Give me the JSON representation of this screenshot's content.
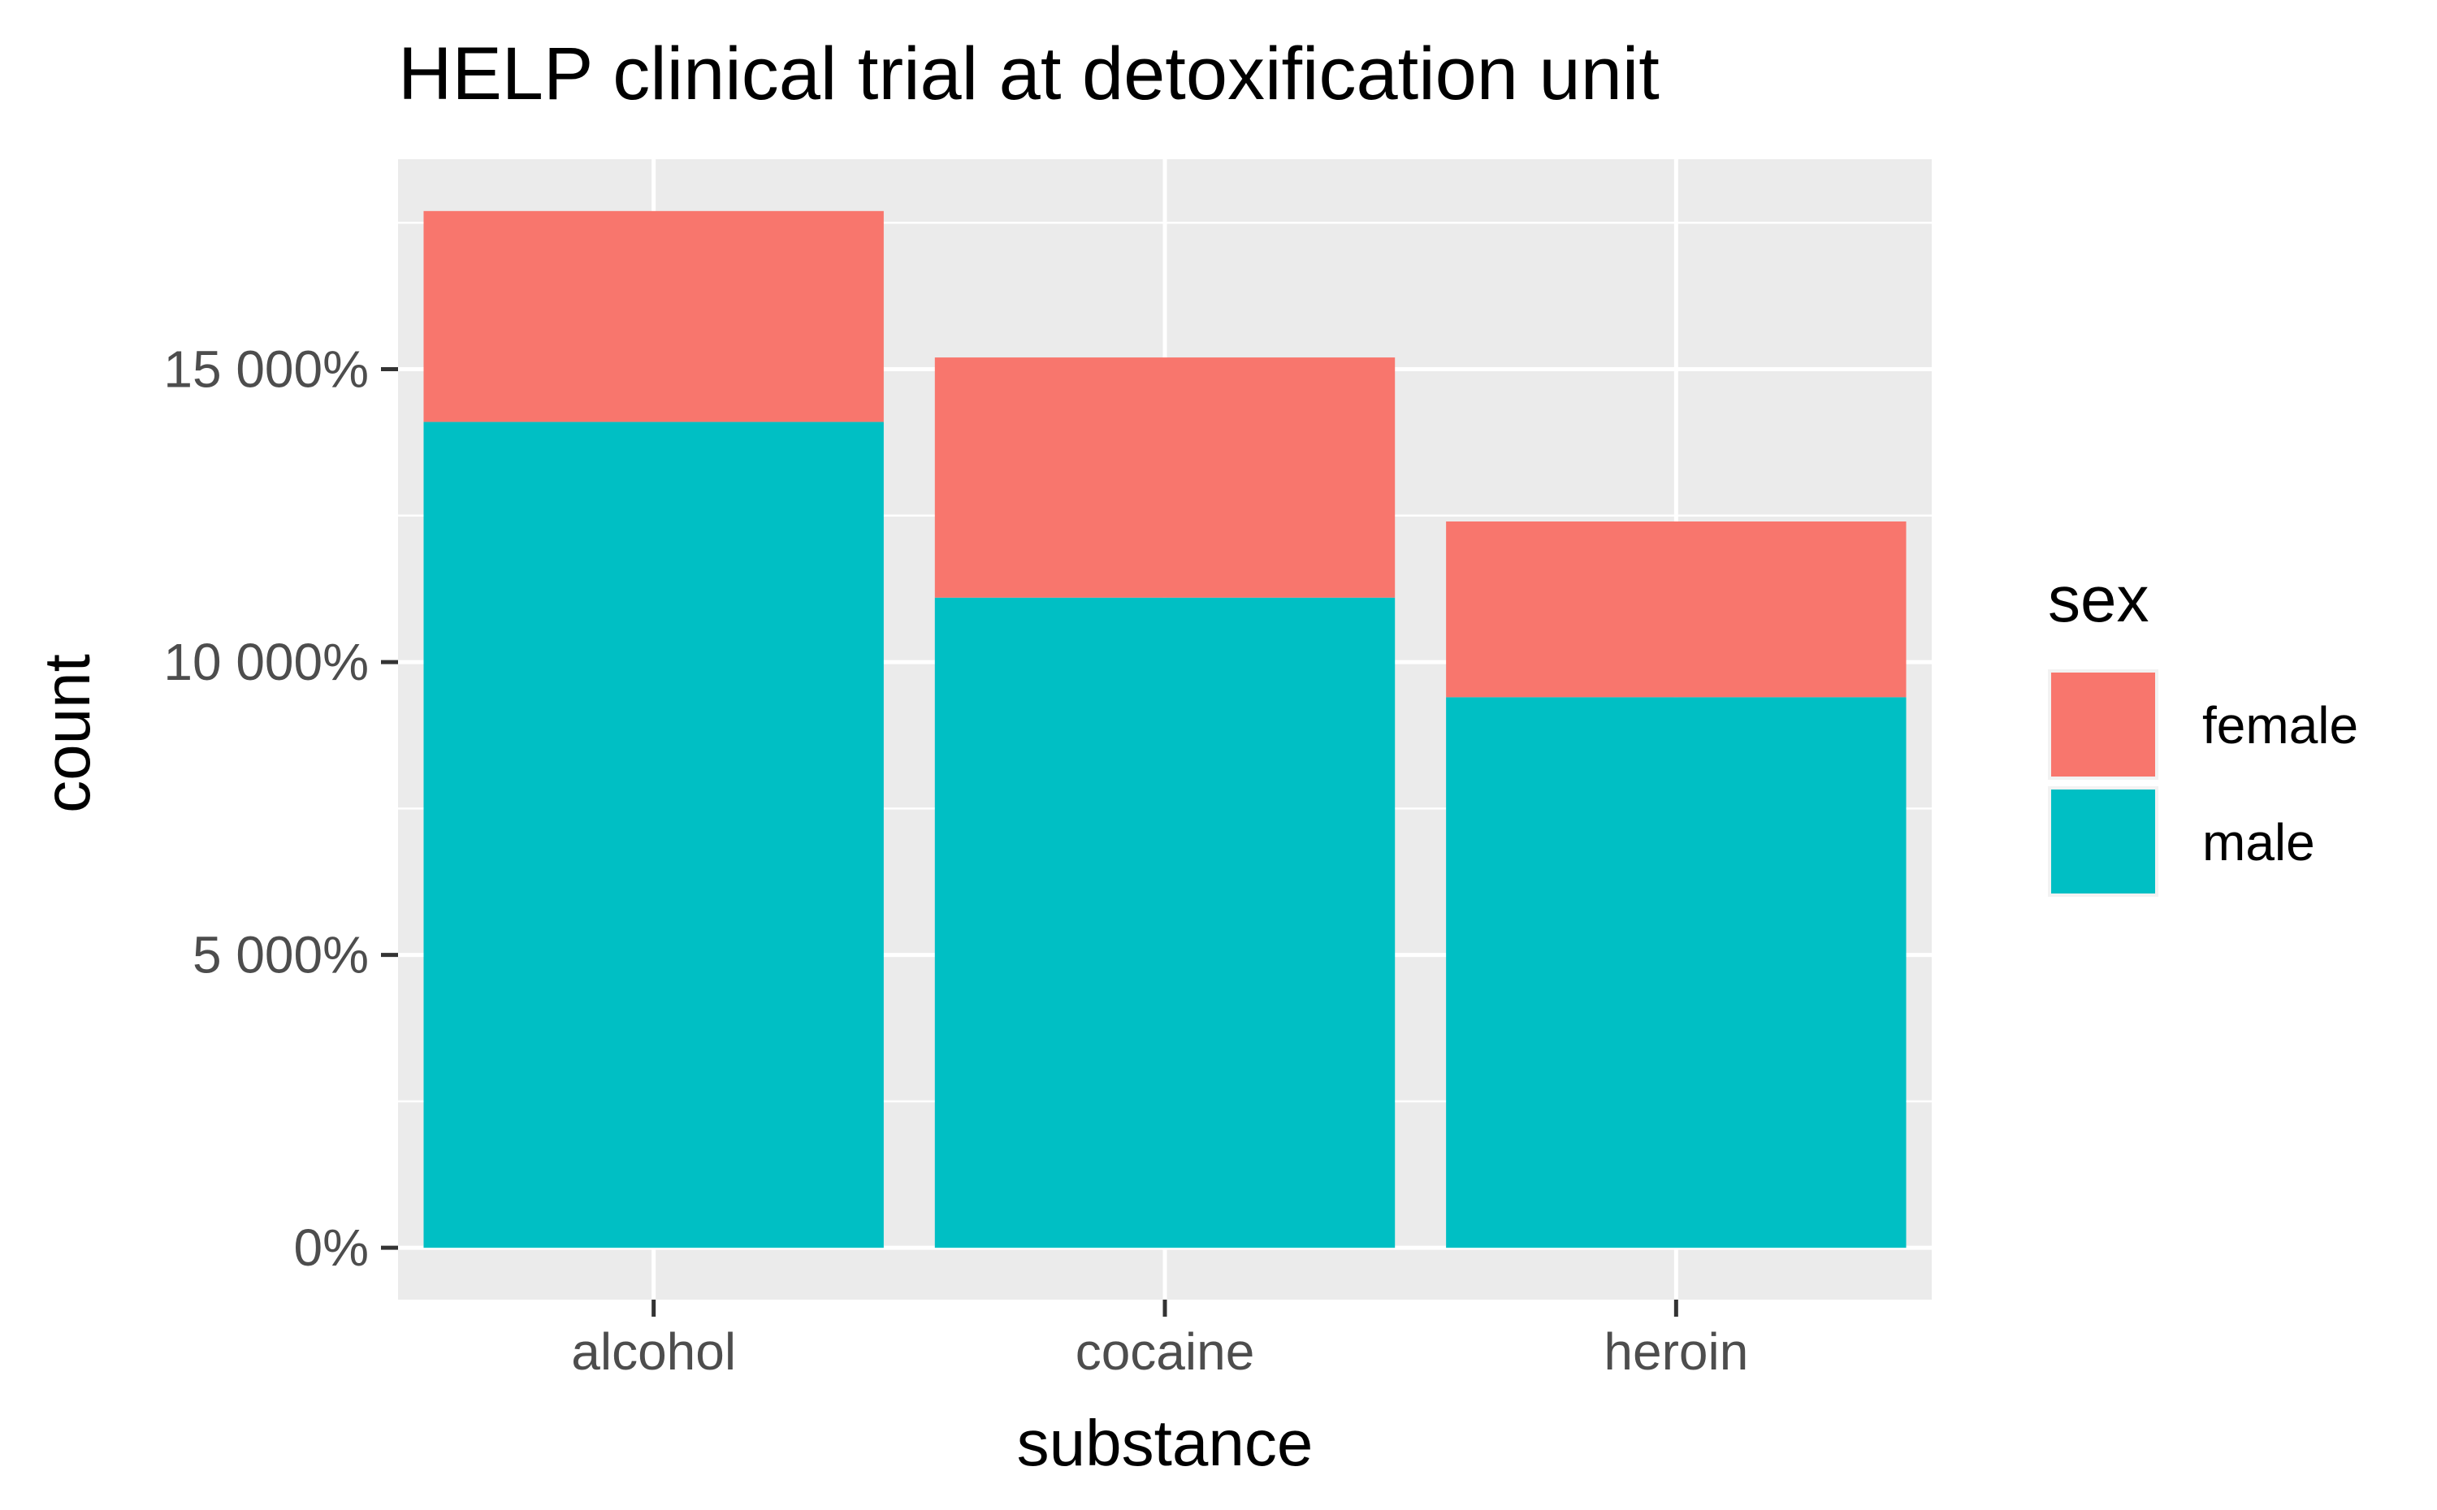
{
  "chart_data": {
    "type": "bar",
    "stacked": true,
    "title": "HELP clinical trial at detoxification unit",
    "xlabel": "substance",
    "ylabel": "count",
    "categories": [
      "alcohol",
      "cocaine",
      "heroin"
    ],
    "series": [
      {
        "name": "male",
        "values": [
          141,
          111,
          94
        ],
        "color": "#00BFC4"
      },
      {
        "name": "female",
        "values": [
          36,
          41,
          30
        ],
        "color": "#F8766D"
      }
    ],
    "ylim": [
      -8.85,
      185.85
    ],
    "yticks": [
      {
        "value": 0,
        "label": "0%"
      },
      {
        "value": 50,
        "label": "5 000%"
      },
      {
        "value": 100,
        "label": "10 000%"
      },
      {
        "value": 150,
        "label": "15 000%"
      }
    ],
    "legend": {
      "title": "sex",
      "position": "right",
      "entries": [
        {
          "label": "female",
          "color": "#F8766D"
        },
        {
          "label": "male",
          "color": "#00BFC4"
        }
      ]
    },
    "grid": true,
    "panel_background": "#EBEBEB",
    "gridline_color": "#FFFFFF",
    "tick_color": "#333333"
  }
}
